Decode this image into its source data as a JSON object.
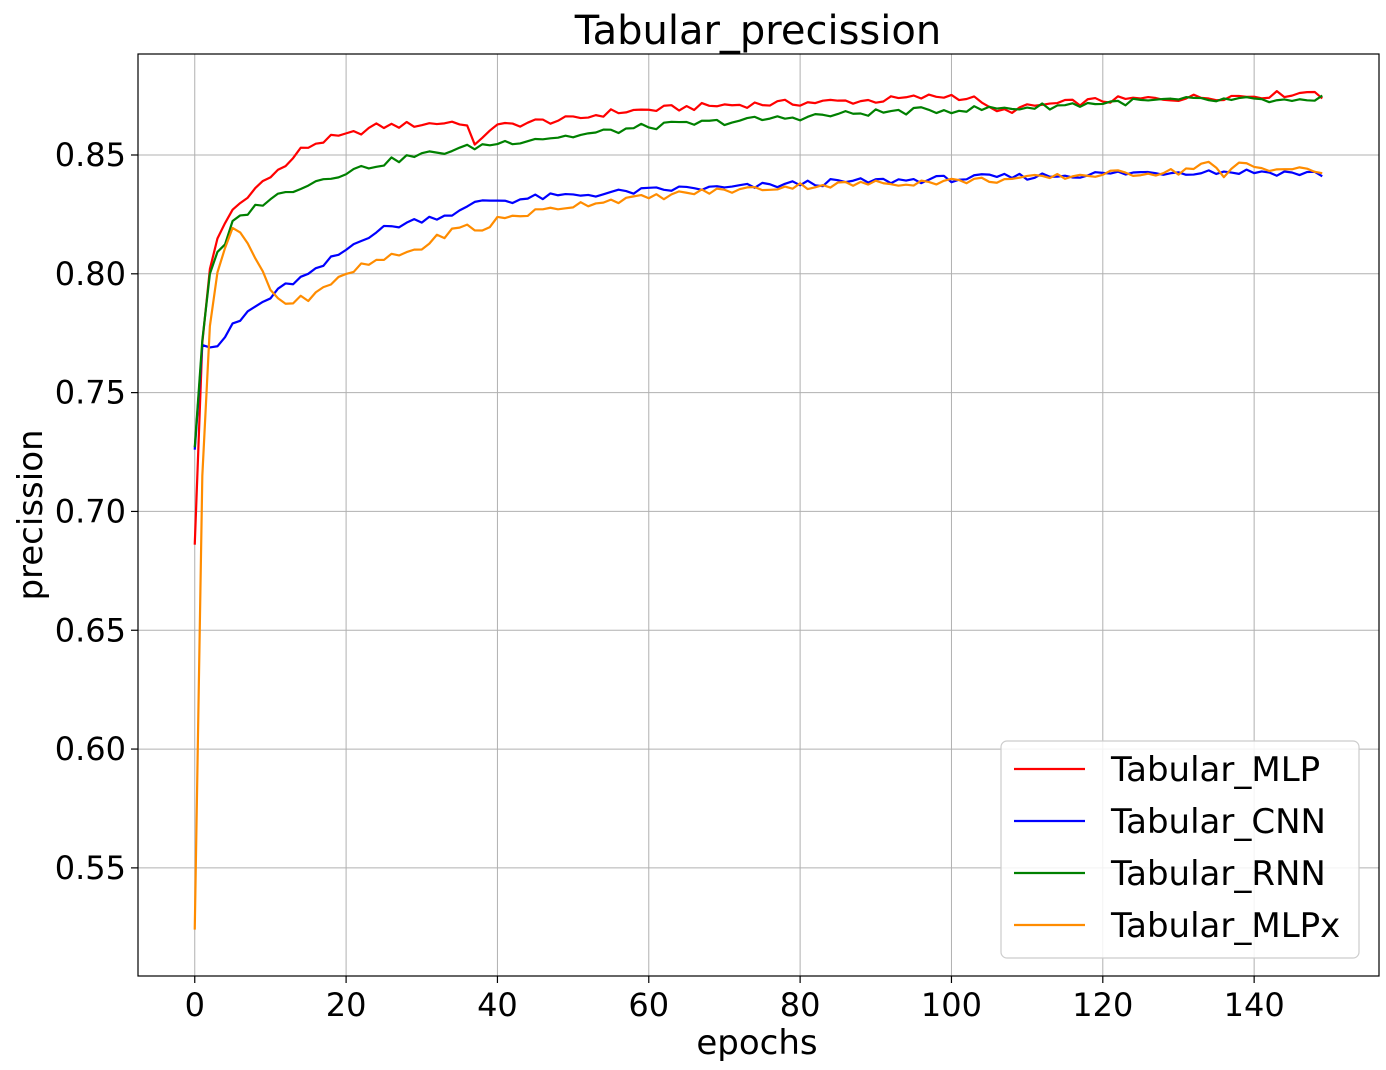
{
  "chart_data": {
    "type": "line",
    "title": "Tabular_precission",
    "xlabel": "epochs",
    "ylabel": "precission",
    "xlim": [
      -7.5,
      156.5
    ],
    "ylim": [
      0.5045,
      0.8925
    ],
    "xticks": [
      0,
      20,
      40,
      60,
      80,
      100,
      120,
      140
    ],
    "xtick_labels": [
      "0",
      "20",
      "40",
      "60",
      "80",
      "100",
      "120",
      "140"
    ],
    "yticks": [
      0.55,
      0.6,
      0.65,
      0.7,
      0.75,
      0.8,
      0.85
    ],
    "ytick_labels": [
      "0.55",
      "0.60",
      "0.65",
      "0.70",
      "0.75",
      "0.80",
      "0.85"
    ],
    "grid": true,
    "legend_position": "lower right",
    "series": [
      {
        "name": "Tabular_MLP",
        "color": "#ff0000",
        "x": [
          0,
          1,
          2,
          3,
          4,
          5,
          6,
          7,
          8,
          10,
          12,
          13,
          14,
          16,
          18,
          20,
          24,
          30,
          35,
          36,
          37,
          38,
          39,
          40,
          45,
          50,
          55,
          60,
          70,
          80,
          90,
          100,
          104,
          105,
          106,
          110,
          112,
          120,
          130,
          140,
          146,
          148,
          149
        ],
        "y": [
          0.686,
          0.771,
          0.802,
          0.815,
          0.822,
          0.826,
          0.829,
          0.832,
          0.836,
          0.842,
          0.845,
          0.849,
          0.852,
          0.855,
          0.857,
          0.858,
          0.862,
          0.863,
          0.864,
          0.862,
          0.853,
          0.858,
          0.861,
          0.862,
          0.864,
          0.865,
          0.868,
          0.869,
          0.871,
          0.872,
          0.873,
          0.875,
          0.873,
          0.869,
          0.868,
          0.87,
          0.871,
          0.873,
          0.874,
          0.875,
          0.876,
          0.877,
          0.875
        ]
      },
      {
        "name": "Tabular_CNN",
        "color": "#0000ff",
        "x": [
          0,
          1,
          2,
          3,
          4,
          5,
          6,
          7,
          8,
          10,
          12,
          14,
          16,
          18,
          20,
          22,
          25,
          30,
          35,
          38,
          40,
          42,
          45,
          50,
          55,
          60,
          65,
          70,
          80,
          90,
          100,
          110,
          120,
          130,
          140,
          149
        ],
        "y": [
          0.726,
          0.77,
          0.769,
          0.77,
          0.772,
          0.779,
          0.78,
          0.784,
          0.786,
          0.79,
          0.795,
          0.798,
          0.801,
          0.806,
          0.81,
          0.815,
          0.819,
          0.823,
          0.826,
          0.831,
          0.831,
          0.831,
          0.832,
          0.833,
          0.834,
          0.835,
          0.836,
          0.836,
          0.838,
          0.839,
          0.84,
          0.841,
          0.842,
          0.843,
          0.843,
          0.842
        ]
      },
      {
        "name": "Tabular_RNN",
        "color": "#008000",
        "x": [
          0,
          1,
          2,
          3,
          4,
          5,
          6,
          8,
          10,
          12,
          14,
          16,
          18,
          20,
          24,
          28,
          32,
          36,
          40,
          45,
          50,
          55,
          60,
          70,
          80,
          90,
          100,
          110,
          120,
          130,
          140,
          148,
          149
        ],
        "y": [
          0.727,
          0.772,
          0.8,
          0.808,
          0.812,
          0.821,
          0.824,
          0.828,
          0.832,
          0.834,
          0.837,
          0.839,
          0.841,
          0.843,
          0.846,
          0.849,
          0.851,
          0.853,
          0.855,
          0.857,
          0.858,
          0.86,
          0.862,
          0.864,
          0.866,
          0.868,
          0.869,
          0.87,
          0.872,
          0.873,
          0.873,
          0.872,
          0.874
        ]
      },
      {
        "name": "Tabular_MLPx",
        "color": "#ff8c00",
        "x": [
          0,
          1,
          2,
          3,
          4,
          5,
          6,
          7,
          8,
          9,
          10,
          11,
          12,
          13,
          14,
          15,
          16,
          18,
          20,
          22,
          25,
          28,
          30,
          32,
          34,
          36,
          38,
          40,
          45,
          50,
          55,
          60,
          65,
          70,
          80,
          90,
          100,
          110,
          120,
          130,
          134,
          136,
          138,
          140,
          145,
          149
        ],
        "y": [
          0.524,
          0.715,
          0.778,
          0.802,
          0.812,
          0.82,
          0.816,
          0.813,
          0.808,
          0.801,
          0.793,
          0.789,
          0.787,
          0.789,
          0.791,
          0.789,
          0.793,
          0.796,
          0.799,
          0.803,
          0.806,
          0.809,
          0.811,
          0.815,
          0.818,
          0.82,
          0.818,
          0.823,
          0.826,
          0.829,
          0.831,
          0.832,
          0.834,
          0.835,
          0.837,
          0.838,
          0.839,
          0.84,
          0.842,
          0.843,
          0.847,
          0.84,
          0.847,
          0.845,
          0.844,
          0.843
        ]
      }
    ]
  }
}
